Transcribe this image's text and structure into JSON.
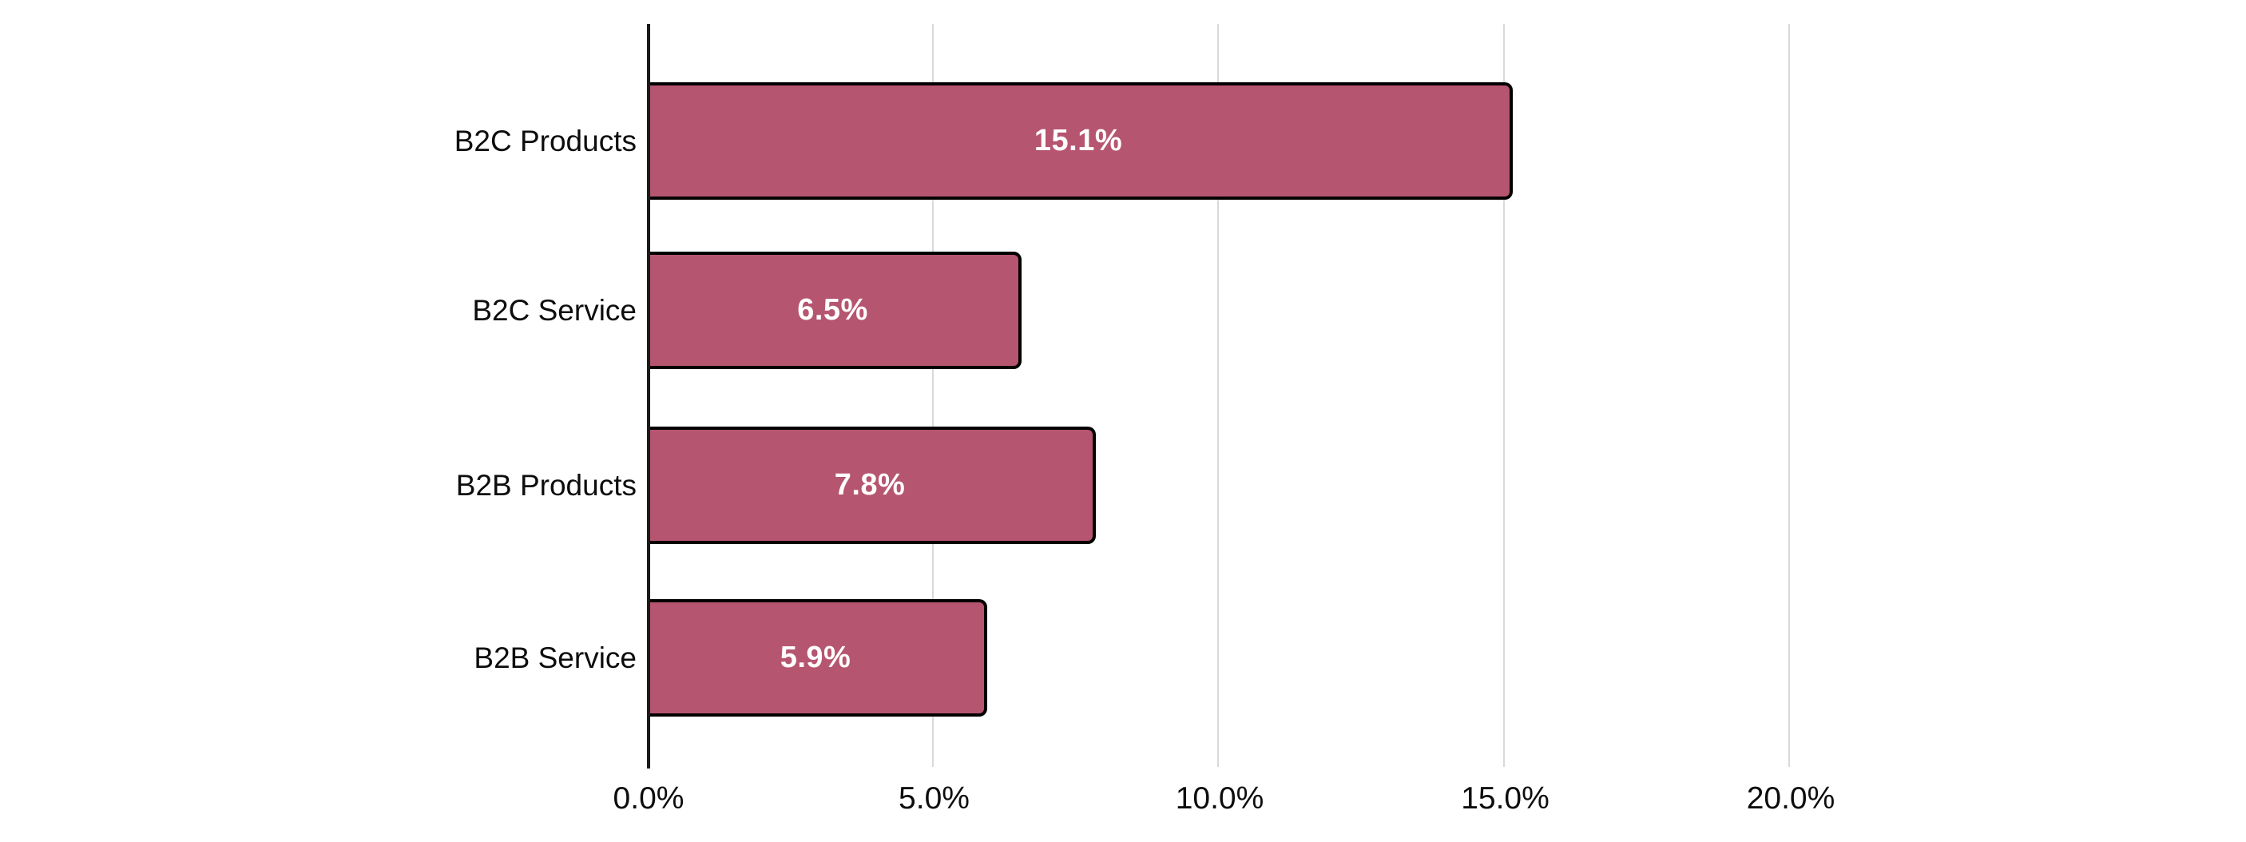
{
  "chart_data": {
    "type": "bar",
    "orientation": "horizontal",
    "title": "",
    "xlabel": "",
    "ylabel": "",
    "categories": [
      "B2C Products",
      "B2C Service",
      "B2B Products",
      "B2B Service"
    ],
    "values": [
      15.1,
      6.5,
      7.8,
      5.9
    ],
    "value_labels": [
      "15.1%",
      "6.5%",
      "7.8%",
      "5.9%"
    ],
    "series_name": "",
    "xlim": [
      0,
      20
    ],
    "x_ticks": [
      {
        "value": 0,
        "label": "0.0%"
      },
      {
        "value": 5,
        "label": "5.0%"
      },
      {
        "value": 10,
        "label": "10.0%"
      },
      {
        "value": 15,
        "label": "15.0%"
      },
      {
        "value": 20,
        "label": "20.0%"
      }
    ],
    "grid": "vertical",
    "legend": "none",
    "colors": {
      "bar_fill": "#b65570",
      "bar_border": "#000000",
      "axis_line": "#1a1a1a",
      "gridline": "#d9d9d9",
      "value_label": "#ffffff",
      "category_label": "#0d0d0d",
      "tick_label": "#0d0d0d",
      "background": "#ffffff"
    }
  }
}
